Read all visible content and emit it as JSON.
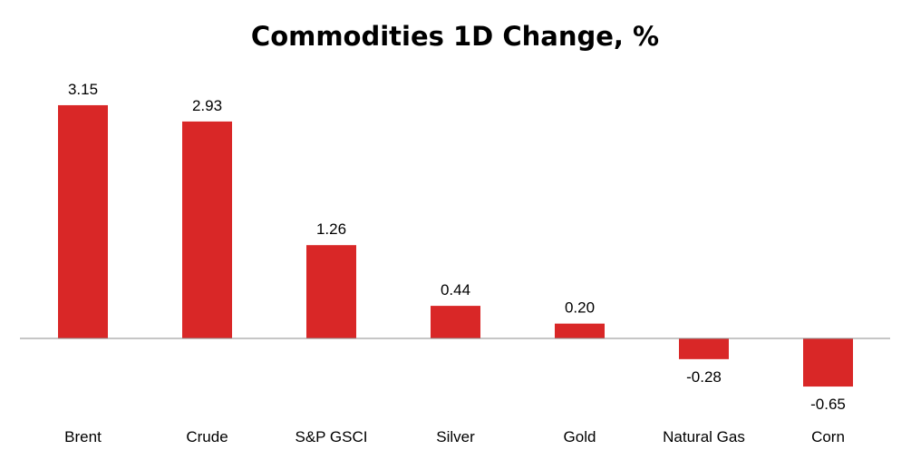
{
  "chart_data": {
    "type": "bar",
    "title": "Commodities 1D Change, %",
    "categories": [
      "Brent",
      "Crude",
      "S&P GSCI",
      "Silver",
      "Gold",
      "Natural Gas",
      "Corn"
    ],
    "values": [
      3.15,
      2.93,
      1.26,
      0.44,
      0.2,
      -0.28,
      -0.65
    ],
    "value_labels": [
      "3.15",
      "2.93",
      "1.26",
      "0.44",
      "0.20",
      "-0.28",
      "-0.65"
    ],
    "xlabel": "",
    "ylabel": "",
    "grid": false,
    "legend": "none",
    "bar_color": "#D92727",
    "axis_color": "#8C8C8C"
  }
}
